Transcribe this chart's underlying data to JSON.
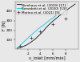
{
  "title": "",
  "xlabel": "v_inlet [mm/min]",
  "ylabel": "F [N]",
  "xlim": [
    0,
    10
  ],
  "ylim": [
    0,
    500
  ],
  "yticks": [
    100,
    200,
    300,
    400
  ],
  "xticks": [
    2,
    4,
    6,
    8
  ],
  "series": [
    {
      "label": "Nienhaus et al. (2019) [17]",
      "color": "#111111",
      "style": "-",
      "linewidth": 0.6,
      "marker": null,
      "x": [
        0.3,
        0.8,
        1.2,
        1.8,
        2.5,
        3.2,
        3.8,
        4.5,
        5.0,
        5.5,
        6.0,
        6.5,
        7.0,
        7.5,
        8.0,
        8.5,
        9.0,
        9.5
      ],
      "y": [
        10,
        18,
        28,
        45,
        75,
        110,
        148,
        195,
        235,
        268,
        298,
        325,
        352,
        378,
        405,
        428,
        452,
        475
      ]
    },
    {
      "label": "Benedetti et al. (2020) [19]",
      "color": "#00ccee",
      "style": "-",
      "linewidth": 0.6,
      "marker": null,
      "x": [
        0.3,
        0.8,
        1.2,
        1.8,
        2.5,
        3.2,
        3.8,
        4.5,
        5.0,
        5.5,
        6.0,
        6.5
      ],
      "y": [
        15,
        40,
        68,
        105,
        148,
        188,
        222,
        255,
        282,
        308,
        332,
        355
      ]
    },
    {
      "label": "Marino et al. (2021) [9]",
      "color": "#333333",
      "style": null,
      "linewidth": 0,
      "marker": "+",
      "markersize": 3.0,
      "x": [
        0.8,
        2.5,
        4.0,
        6.0,
        8.0
      ],
      "y": [
        35,
        120,
        190,
        268,
        320
      ]
    }
  ],
  "legend_fontsize": 3.0,
  "axis_fontsize": 3.8,
  "tick_fontsize": 3.0,
  "background_color": "#e8e8e8"
}
